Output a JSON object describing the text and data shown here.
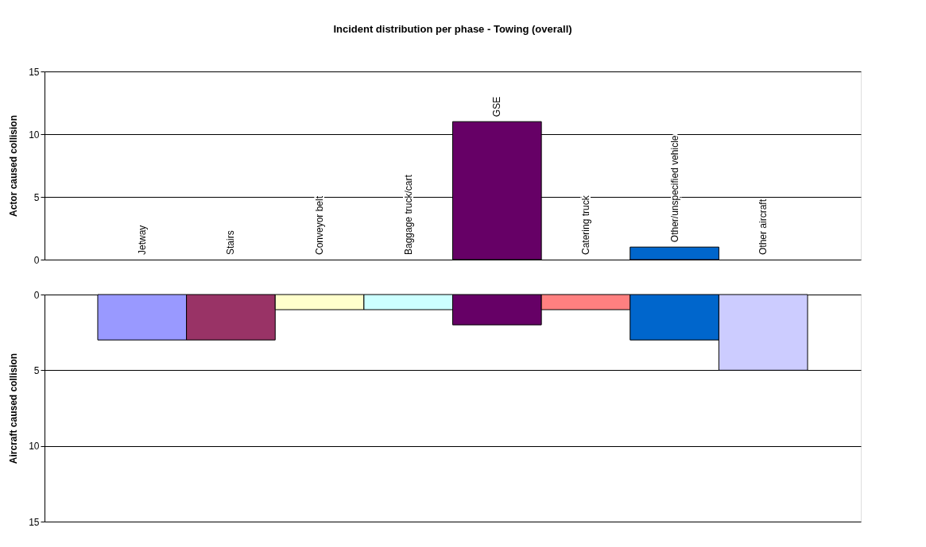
{
  "chart_data": [
    {
      "type": "bar",
      "title": "Incident distribution per phase - Towing (overall)",
      "ylabel": "Actor caused collision",
      "categories": [
        "Jetway",
        "Stairs",
        "Conveyor belt",
        "Baggage truck/cart",
        "GSE",
        "Catering truck",
        "Other/unspecified vehicle",
        "Other aircraft"
      ],
      "values": [
        0,
        0,
        0,
        0,
        11,
        0,
        1,
        0
      ],
      "colors": [
        "#9999ff",
        "#993366",
        "#ffffcc",
        "#ccffff",
        "#660066",
        "#ff8080",
        "#0066cc",
        "#ccccff"
      ],
      "ylim": [
        0,
        15
      ],
      "yticks": [
        0,
        5,
        10,
        15
      ],
      "grid": "y"
    },
    {
      "type": "bar",
      "ylabel": "Aircraft caused collision",
      "categories": [
        null,
        null,
        null,
        null,
        null,
        null,
        null,
        null
      ],
      "values": [
        3,
        3,
        1,
        1,
        2,
        1,
        3,
        5
      ],
      "colors": [
        "#9999ff",
        "#993366",
        "#ffffcc",
        "#ccffff",
        "#660066",
        "#ff8080",
        "#0066cc",
        "#ccccff"
      ],
      "ylim": [
        15,
        0
      ],
      "yticks": [
        0,
        5,
        10,
        15
      ],
      "grid": "y",
      "tick_labels": "y"
    }
  ]
}
